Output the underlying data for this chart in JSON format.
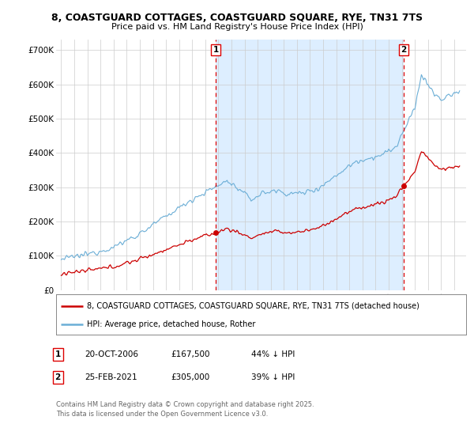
{
  "title1": "8, COASTGUARD COTTAGES, COASTGUARD SQUARE, RYE, TN31 7TS",
  "title2": "Price paid vs. HM Land Registry's House Price Index (HPI)",
  "ylim": [
    0,
    730000
  ],
  "yticks": [
    0,
    100000,
    200000,
    300000,
    400000,
    500000,
    600000,
    700000
  ],
  "ytick_labels": [
    "£0",
    "£100K",
    "£200K",
    "£300K",
    "£400K",
    "£500K",
    "£600K",
    "£700K"
  ],
  "sale1_date": 2006.8,
  "sale1_price": 167500,
  "sale2_date": 2021.15,
  "sale2_price": 305000,
  "hpi_color": "#6baed6",
  "price_color": "#cc0000",
  "vline_color": "#dd0000",
  "shade_color": "#ddeeff",
  "background_color": "#ffffff",
  "legend_label_price": "8, COASTGUARD COTTAGES, COASTGUARD SQUARE, RYE, TN31 7TS (detached house)",
  "legend_label_hpi": "HPI: Average price, detached house, Rother",
  "footnote1": "Contains HM Land Registry data © Crown copyright and database right 2025.",
  "footnote2": "This data is licensed under the Open Government Licence v3.0.",
  "table_row1": [
    "1",
    "20-OCT-2006",
    "£167,500",
    "44% ↓ HPI"
  ],
  "table_row2": [
    "2",
    "25-FEB-2021",
    "£305,000",
    "39% ↓ HPI"
  ],
  "xlim_left": 1994.6,
  "xlim_right": 2025.9
}
